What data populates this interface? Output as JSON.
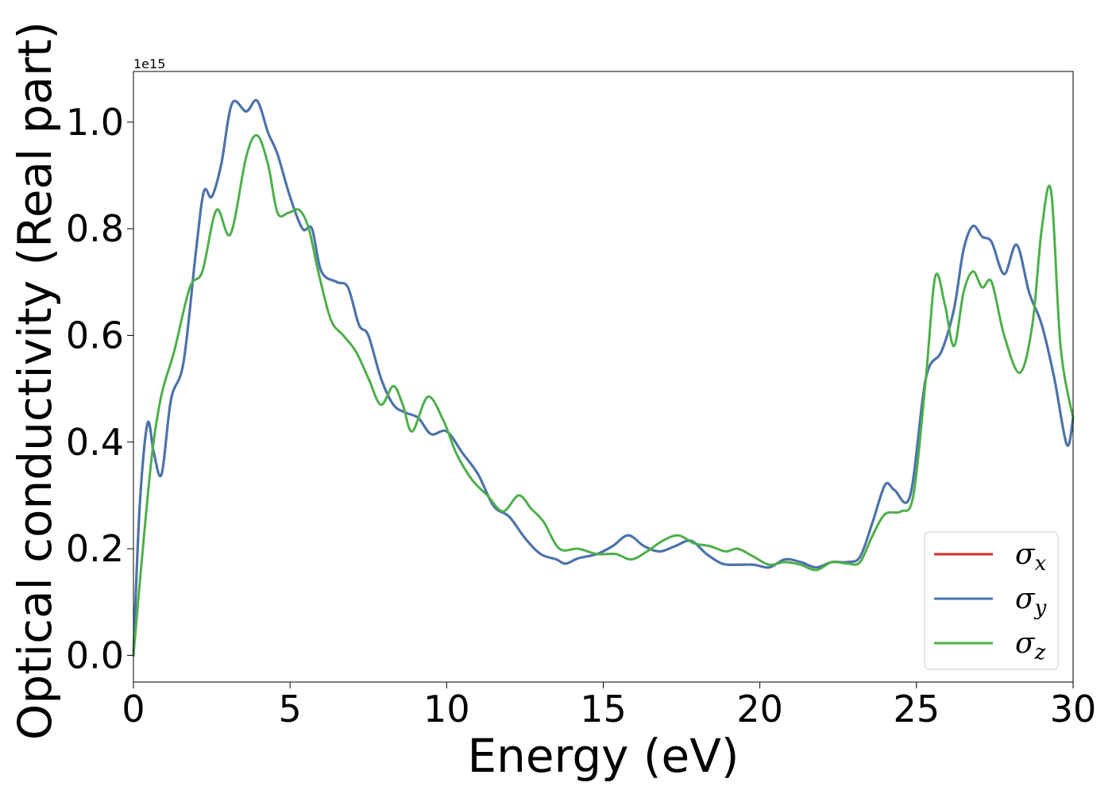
{
  "chart_data": {
    "type": "line",
    "title": "",
    "xlabel": "Energy (eV)",
    "ylabel": "Optical conductivity (Real part)",
    "y_offset_text": "1e15",
    "y_multiplier": 1000000000000000.0,
    "xlim": [
      0,
      30
    ],
    "ylim": [
      -0.05,
      1.095
    ],
    "xticks": [
      0,
      5,
      10,
      15,
      20,
      25,
      30
    ],
    "xtick_labels": [
      "0",
      "5",
      "10",
      "15",
      "20",
      "25",
      "30"
    ],
    "yticks": [
      0.0,
      0.2,
      0.4,
      0.6,
      0.8,
      1.0
    ],
    "ytick_labels": [
      "0.0",
      "0.2",
      "0.4",
      "0.6",
      "0.8",
      "1.0"
    ],
    "grid": false,
    "legend_position": "lower right",
    "legend": [
      {
        "symbol": "σ",
        "sub": "x"
      },
      {
        "symbol": "σ",
        "sub": "y"
      },
      {
        "symbol": "σ",
        "sub": "z"
      }
    ],
    "series": [
      {
        "name": "σx",
        "color": "#d62728",
        "x": [
          0,
          0.2,
          0.45,
          0.65,
          0.9,
          1.2,
          1.6,
          2.0,
          2.25,
          2.5,
          2.8,
          3.15,
          3.6,
          3.95,
          4.3,
          4.6,
          5.0,
          5.4,
          5.7,
          6.0,
          6.5,
          6.85,
          7.2,
          7.5,
          7.9,
          8.3,
          8.7,
          9.1,
          9.5,
          10.0,
          10.5,
          11.0,
          11.5,
          12.0,
          12.5,
          13.0,
          13.5,
          13.8,
          14.2,
          14.8,
          15.3,
          15.8,
          16.3,
          16.8,
          17.3,
          17.8,
          18.3,
          18.8,
          19.3,
          19.8,
          20.3,
          20.8,
          21.3,
          21.8,
          22.3,
          22.8,
          23.2,
          23.6,
          24.0,
          24.3,
          24.8,
          25.3,
          25.8,
          26.2,
          26.5,
          26.8,
          27.1,
          27.4,
          27.8,
          28.2,
          28.6,
          29.0,
          29.4,
          29.8,
          30.0
        ],
        "values": [
          0.0,
          0.28,
          0.435,
          0.38,
          0.34,
          0.48,
          0.55,
          0.76,
          0.87,
          0.86,
          0.92,
          1.035,
          1.02,
          1.04,
          0.98,
          0.94,
          0.86,
          0.8,
          0.8,
          0.72,
          0.7,
          0.69,
          0.62,
          0.6,
          0.52,
          0.47,
          0.455,
          0.445,
          0.415,
          0.42,
          0.38,
          0.34,
          0.28,
          0.26,
          0.22,
          0.19,
          0.18,
          0.172,
          0.182,
          0.19,
          0.205,
          0.225,
          0.205,
          0.195,
          0.205,
          0.215,
          0.19,
          0.172,
          0.17,
          0.17,
          0.165,
          0.18,
          0.175,
          0.165,
          0.175,
          0.175,
          0.185,
          0.25,
          0.32,
          0.31,
          0.3,
          0.52,
          0.57,
          0.65,
          0.76,
          0.805,
          0.785,
          0.775,
          0.715,
          0.77,
          0.68,
          0.62,
          0.52,
          0.395,
          0.445
        ]
      },
      {
        "name": "σy",
        "color": "#4575b0",
        "x": [
          0,
          0.2,
          0.45,
          0.65,
          0.9,
          1.2,
          1.6,
          2.0,
          2.25,
          2.5,
          2.8,
          3.15,
          3.6,
          3.95,
          4.3,
          4.6,
          5.0,
          5.4,
          5.7,
          6.0,
          6.5,
          6.85,
          7.2,
          7.5,
          7.9,
          8.3,
          8.7,
          9.1,
          9.5,
          10.0,
          10.5,
          11.0,
          11.5,
          12.0,
          12.5,
          13.0,
          13.5,
          13.8,
          14.2,
          14.8,
          15.3,
          15.8,
          16.3,
          16.8,
          17.3,
          17.8,
          18.3,
          18.8,
          19.3,
          19.8,
          20.3,
          20.8,
          21.3,
          21.8,
          22.3,
          22.8,
          23.2,
          23.6,
          24.0,
          24.3,
          24.8,
          25.3,
          25.8,
          26.2,
          26.5,
          26.8,
          27.1,
          27.4,
          27.8,
          28.2,
          28.6,
          29.0,
          29.4,
          29.8,
          30.0
        ],
        "values": [
          0.0,
          0.28,
          0.435,
          0.38,
          0.34,
          0.48,
          0.55,
          0.76,
          0.87,
          0.86,
          0.92,
          1.035,
          1.02,
          1.04,
          0.98,
          0.94,
          0.86,
          0.8,
          0.8,
          0.72,
          0.7,
          0.69,
          0.62,
          0.6,
          0.52,
          0.47,
          0.455,
          0.445,
          0.415,
          0.42,
          0.38,
          0.34,
          0.28,
          0.26,
          0.22,
          0.19,
          0.18,
          0.172,
          0.182,
          0.19,
          0.205,
          0.225,
          0.205,
          0.195,
          0.205,
          0.215,
          0.19,
          0.172,
          0.17,
          0.17,
          0.165,
          0.18,
          0.175,
          0.165,
          0.175,
          0.175,
          0.185,
          0.25,
          0.32,
          0.31,
          0.3,
          0.52,
          0.57,
          0.65,
          0.76,
          0.805,
          0.785,
          0.775,
          0.715,
          0.77,
          0.68,
          0.62,
          0.52,
          0.395,
          0.445
        ]
      },
      {
        "name": "σz",
        "color": "#4daf4a",
        "x": [
          0,
          0.3,
          0.6,
          0.9,
          1.3,
          1.8,
          2.2,
          2.65,
          3.1,
          3.6,
          3.95,
          4.3,
          4.6,
          4.95,
          5.3,
          5.6,
          5.9,
          6.3,
          6.7,
          7.1,
          7.5,
          7.9,
          8.3,
          8.6,
          8.9,
          9.4,
          9.9,
          10.3,
          10.8,
          11.3,
          11.8,
          12.3,
          12.7,
          13.1,
          13.6,
          14.2,
          14.8,
          15.4,
          15.9,
          16.4,
          16.9,
          17.4,
          17.9,
          18.4,
          18.9,
          19.3,
          19.8,
          20.3,
          20.8,
          21.3,
          21.8,
          22.3,
          22.8,
          23.2,
          23.6,
          24.0,
          24.5,
          24.9,
          25.3,
          25.6,
          25.9,
          26.2,
          26.5,
          26.8,
          27.1,
          27.4,
          27.8,
          28.3,
          28.7,
          29.0,
          29.3,
          29.6,
          30.0
        ],
        "values": [
          0.0,
          0.2,
          0.38,
          0.49,
          0.57,
          0.69,
          0.72,
          0.835,
          0.79,
          0.935,
          0.975,
          0.92,
          0.83,
          0.83,
          0.835,
          0.8,
          0.72,
          0.63,
          0.6,
          0.57,
          0.52,
          0.47,
          0.505,
          0.47,
          0.42,
          0.485,
          0.44,
          0.38,
          0.33,
          0.3,
          0.27,
          0.3,
          0.275,
          0.25,
          0.2,
          0.2,
          0.19,
          0.19,
          0.18,
          0.195,
          0.215,
          0.225,
          0.21,
          0.205,
          0.195,
          0.2,
          0.185,
          0.17,
          0.175,
          0.17,
          0.16,
          0.175,
          0.172,
          0.175,
          0.225,
          0.265,
          0.27,
          0.3,
          0.52,
          0.71,
          0.66,
          0.58,
          0.68,
          0.72,
          0.69,
          0.7,
          0.6,
          0.53,
          0.62,
          0.8,
          0.87,
          0.58,
          0.445
        ]
      }
    ]
  }
}
